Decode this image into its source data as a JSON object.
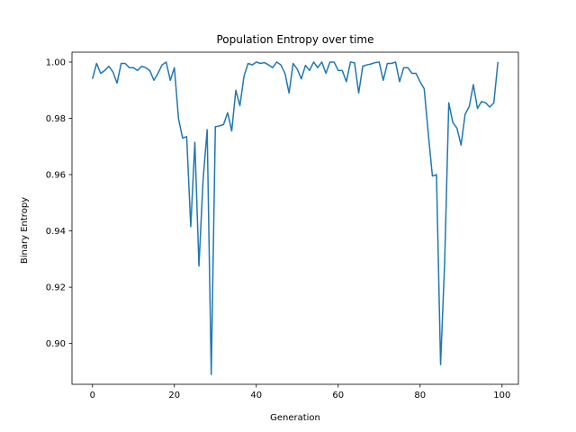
{
  "chart_data": {
    "type": "line",
    "title": "Population Entropy over time",
    "xlabel": "Generation",
    "ylabel": "Binary Entropy",
    "xlim": [
      -5,
      104
    ],
    "ylim": [
      0.8855,
      1.0035
    ],
    "xticks": [
      0,
      20,
      40,
      60,
      80,
      100
    ],
    "yticks": [
      0.9,
      0.92,
      0.94,
      0.96,
      0.98,
      1.0
    ],
    "xtick_labels": [
      "0",
      "20",
      "40",
      "60",
      "80",
      "100"
    ],
    "ytick_labels": [
      "0.90",
      "0.92",
      "0.94",
      "0.96",
      "0.98",
      "1.00"
    ],
    "grid": false,
    "series": [
      {
        "color": "#1f77b4",
        "x": [
          0,
          1,
          2,
          3,
          4,
          5,
          6,
          7,
          8,
          9,
          10,
          11,
          12,
          13,
          14,
          15,
          16,
          17,
          18,
          19,
          20,
          21,
          22,
          23,
          24,
          25,
          26,
          27,
          28,
          29,
          30,
          31,
          32,
          33,
          34,
          35,
          36,
          37,
          38,
          39,
          40,
          41,
          42,
          43,
          44,
          45,
          46,
          47,
          48,
          49,
          50,
          51,
          52,
          53,
          54,
          55,
          56,
          57,
          58,
          59,
          60,
          61,
          62,
          63,
          64,
          65,
          66,
          67,
          68,
          69,
          70,
          71,
          72,
          73,
          74,
          75,
          76,
          77,
          78,
          79,
          80,
          81,
          82,
          83,
          84,
          85,
          86,
          87,
          88,
          89,
          90,
          91,
          92,
          93,
          94,
          95,
          96,
          97,
          98,
          99
        ],
        "y": [
          0.994,
          0.9995,
          0.996,
          0.997,
          0.9985,
          0.9965,
          0.9925,
          0.9995,
          0.9995,
          0.998,
          0.998,
          0.997,
          0.9985,
          0.998,
          0.997,
          0.9935,
          0.996,
          0.999,
          1.0,
          0.9935,
          0.998,
          0.98,
          0.973,
          0.9735,
          0.9415,
          0.9715,
          0.9275,
          0.958,
          0.976,
          0.889,
          0.977,
          0.9773,
          0.9778,
          0.982,
          0.9755,
          0.99,
          0.9845,
          0.995,
          0.9995,
          0.999,
          1.0,
          0.9995,
          0.9998,
          0.999,
          0.998,
          1.0,
          0.999,
          0.996,
          0.989,
          0.9995,
          0.9975,
          0.994,
          0.9988,
          0.997,
          1.0,
          0.998,
          1.0,
          0.996,
          1.0,
          1.0,
          0.997,
          0.997,
          0.993,
          1.0,
          0.9997,
          0.989,
          0.9985,
          0.999,
          0.9993,
          0.9998,
          1.0,
          0.9935,
          0.9995,
          0.9995,
          1.0,
          0.993,
          0.998,
          0.998,
          0.996,
          0.996,
          0.993,
          0.9905,
          0.9745,
          0.9595,
          0.96,
          0.8925,
          0.929,
          0.9855,
          0.9785,
          0.9765,
          0.9705,
          0.9815,
          0.9842,
          0.992,
          0.9835,
          0.986,
          0.9855,
          0.984,
          0.9855,
          1.0
        ]
      }
    ]
  }
}
